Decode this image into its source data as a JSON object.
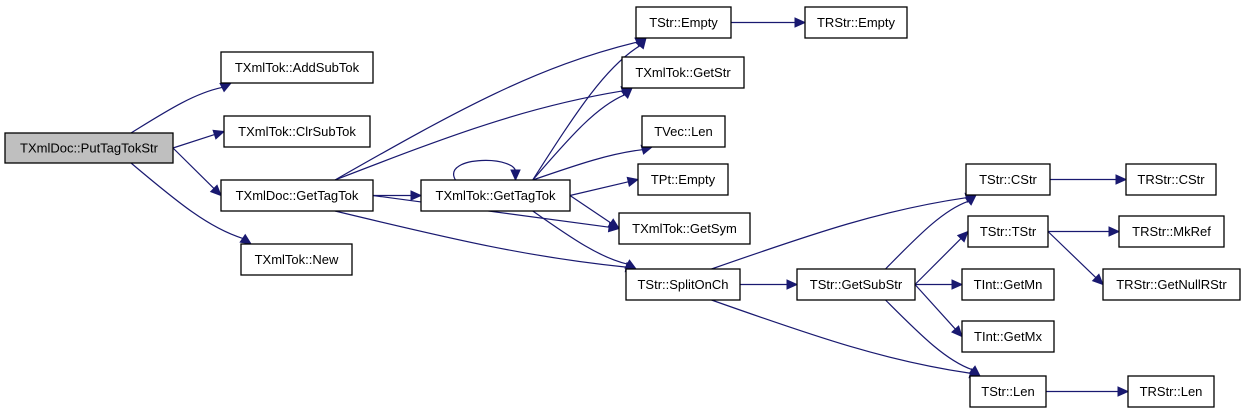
{
  "graph": {
    "root": "n0",
    "colors": {
      "edge": "#191970",
      "root_fill": "#bfbfbf",
      "node_fill": "#ffffff"
    },
    "nodes": [
      {
        "id": "n0",
        "label": "TXmlDoc::PutTagTokStr"
      },
      {
        "id": "n1",
        "label": "TXmlTok::AddSubTok"
      },
      {
        "id": "n2",
        "label": "TXmlTok::ClrSubTok"
      },
      {
        "id": "n3",
        "label": "TXmlDoc::GetTagTok"
      },
      {
        "id": "n4",
        "label": "TXmlTok::New"
      },
      {
        "id": "n5",
        "label": "TXmlTok::GetTagTok"
      },
      {
        "id": "n6",
        "label": "TStr::Empty"
      },
      {
        "id": "n7",
        "label": "TRStr::Empty"
      },
      {
        "id": "n8",
        "label": "TXmlTok::GetStr"
      },
      {
        "id": "n9",
        "label": "TVec::Len"
      },
      {
        "id": "n10",
        "label": "TPt::Empty"
      },
      {
        "id": "n11",
        "label": "TXmlTok::GetSym"
      },
      {
        "id": "n12",
        "label": "TStr::SplitOnCh"
      },
      {
        "id": "n13",
        "label": "TStr::GetSubStr"
      },
      {
        "id": "n14",
        "label": "TStr::CStr"
      },
      {
        "id": "n15",
        "label": "TRStr::CStr"
      },
      {
        "id": "n16",
        "label": "TStr::TStr"
      },
      {
        "id": "n17",
        "label": "TRStr::MkRef"
      },
      {
        "id": "n18",
        "label": "TRStr::GetNullRStr"
      },
      {
        "id": "n19",
        "label": "TInt::GetMn"
      },
      {
        "id": "n20",
        "label": "TInt::GetMx"
      },
      {
        "id": "n21",
        "label": "TStr::Len"
      },
      {
        "id": "n22",
        "label": "TRStr::Len"
      }
    ],
    "edges": [
      [
        "n0",
        "n1"
      ],
      [
        "n0",
        "n2"
      ],
      [
        "n0",
        "n3"
      ],
      [
        "n0",
        "n4"
      ],
      [
        "n3",
        "n6"
      ],
      [
        "n3",
        "n8"
      ],
      [
        "n3",
        "n5"
      ],
      [
        "n3",
        "n11"
      ],
      [
        "n3",
        "n12"
      ],
      [
        "n5",
        "n5"
      ],
      [
        "n5",
        "n6"
      ],
      [
        "n5",
        "n8"
      ],
      [
        "n5",
        "n9"
      ],
      [
        "n5",
        "n10"
      ],
      [
        "n5",
        "n11"
      ],
      [
        "n5",
        "n12"
      ],
      [
        "n6",
        "n7"
      ],
      [
        "n12",
        "n13"
      ],
      [
        "n12",
        "n14"
      ],
      [
        "n12",
        "n21"
      ],
      [
        "n13",
        "n14"
      ],
      [
        "n13",
        "n16"
      ],
      [
        "n13",
        "n19"
      ],
      [
        "n13",
        "n20"
      ],
      [
        "n13",
        "n21"
      ],
      [
        "n14",
        "n15"
      ],
      [
        "n16",
        "n17"
      ],
      [
        "n16",
        "n18"
      ],
      [
        "n21",
        "n22"
      ]
    ]
  }
}
